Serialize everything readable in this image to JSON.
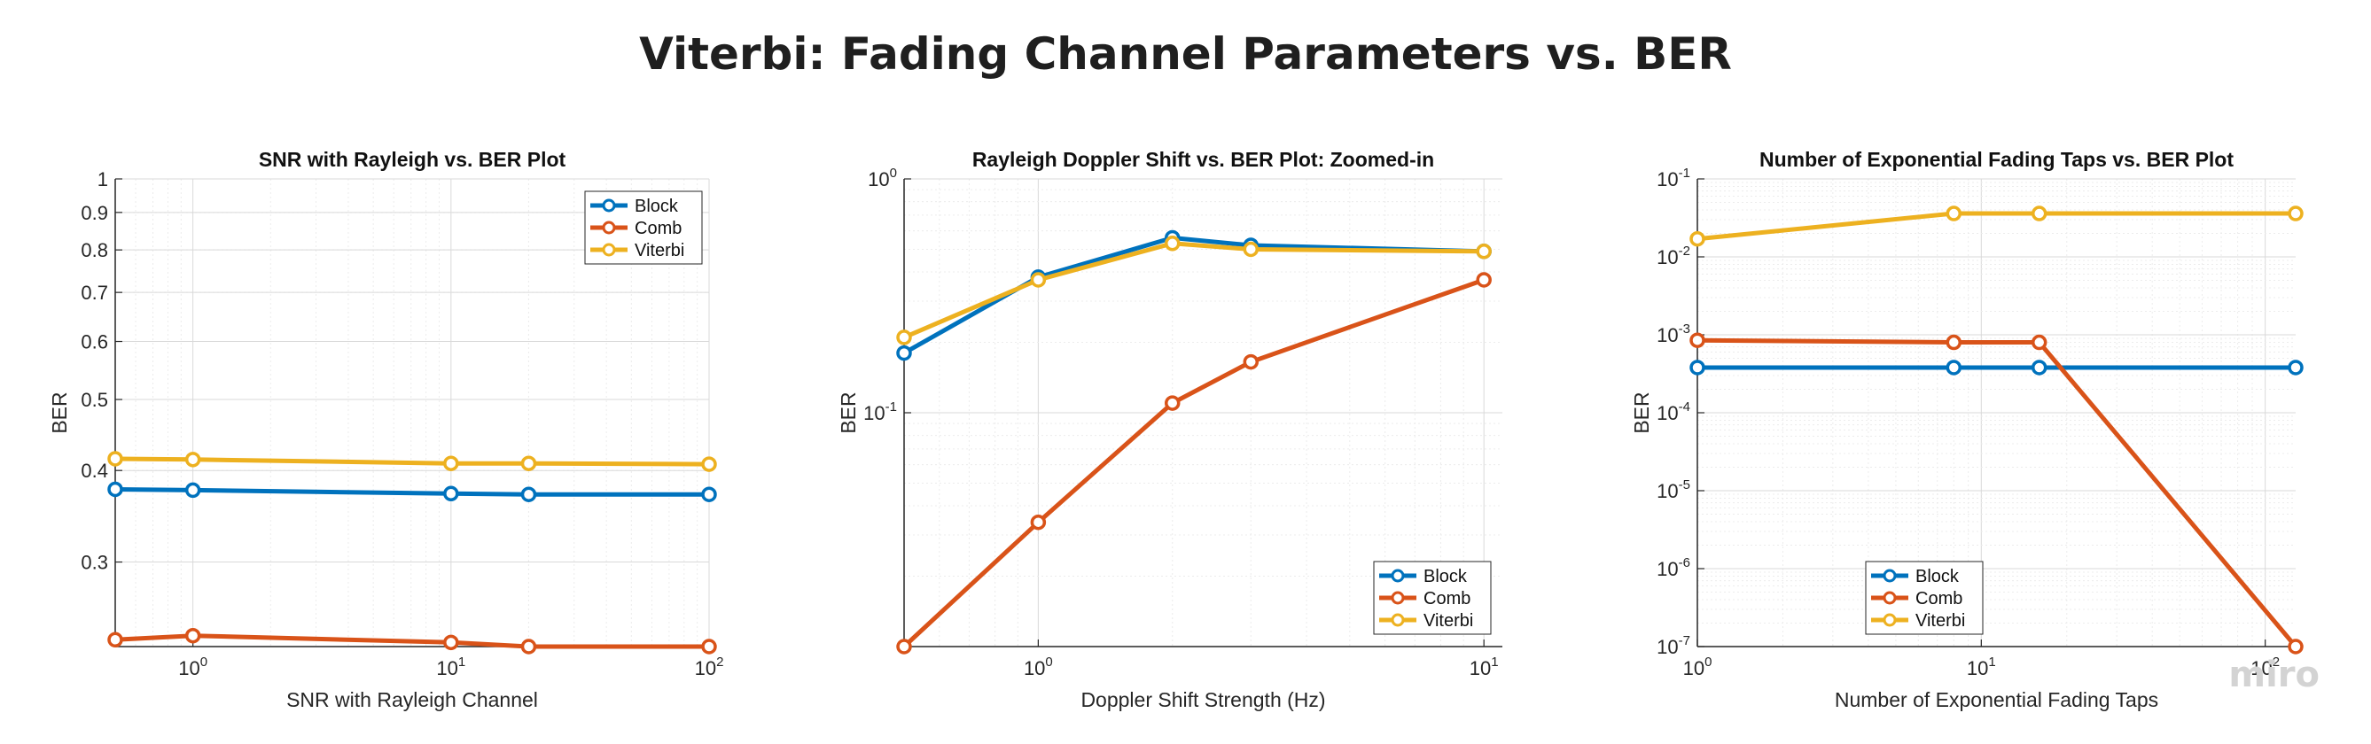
{
  "page": {
    "title": "Viterbi: Fading Channel Parameters vs. BER",
    "watermark": "miro"
  },
  "colors": {
    "Block": "#0072bd",
    "Comb": "#d95319",
    "Viterbi": "#edb120"
  },
  "chart_data": [
    {
      "type": "line",
      "title": "SNR with Rayleigh vs. BER Plot",
      "xlabel": "SNR with Rayleigh Channel",
      "ylabel": "BER",
      "xscale": "log",
      "yscale": "log",
      "xlim": [
        0.5,
        100
      ],
      "ylim": [
        0.23,
        1
      ],
      "xticks": [
        1,
        10,
        100
      ],
      "xtick_labels": [
        "10^0",
        "10^1",
        "10^2"
      ],
      "yticks": [
        0.3,
        0.4,
        0.5,
        0.6,
        0.7,
        0.8,
        0.9,
        1
      ],
      "ytick_labels": [
        "0.3",
        "0.4",
        "0.5",
        "0.6",
        "0.7",
        "0.8",
        "0.9",
        "1"
      ],
      "grid": true,
      "legend": "top-right",
      "x": [
        0.5,
        1,
        10,
        20,
        100
      ],
      "series": [
        {
          "name": "Block",
          "values": [
            0.377,
            0.376,
            0.372,
            0.371,
            0.371
          ]
        },
        {
          "name": "Comb",
          "values": [
            0.235,
            0.238,
            0.233,
            0.23,
            0.23
          ]
        },
        {
          "name": "Viterbi",
          "values": [
            0.415,
            0.414,
            0.409,
            0.409,
            0.408
          ]
        }
      ]
    },
    {
      "type": "line",
      "title": "Rayleigh Doppler Shift vs. BER Plot: Zoomed-in",
      "xlabel": "Doppler Shift Strength (Hz)",
      "ylabel": "BER",
      "xscale": "log",
      "yscale": "log",
      "xlim": [
        0.5,
        11
      ],
      "ylim": [
        0.01,
        1
      ],
      "xticks": [
        1,
        10
      ],
      "xtick_labels": [
        "10^0",
        "10^1"
      ],
      "yticks": [
        0.1,
        1
      ],
      "ytick_labels": [
        "10^-1",
        "10^0"
      ],
      "grid": true,
      "legend": "bottom-right",
      "x": [
        0.5,
        1,
        2,
        3,
        10
      ],
      "series": [
        {
          "name": "Block",
          "values": [
            0.18,
            0.38,
            0.56,
            0.52,
            0.49
          ]
        },
        {
          "name": "Comb",
          "values": [
            0.01,
            0.034,
            0.11,
            0.165,
            0.37
          ]
        },
        {
          "name": "Viterbi",
          "values": [
            0.21,
            0.37,
            0.53,
            0.5,
            0.49
          ]
        }
      ]
    },
    {
      "type": "line",
      "title": "Number of Exponential Fading Taps vs. BER Plot",
      "xlabel": "Number of Exponential Fading Taps",
      "ylabel": "BER",
      "xscale": "log",
      "yscale": "log",
      "xlim": [
        1,
        128
      ],
      "ylim": [
        1e-07,
        0.1
      ],
      "xticks": [
        1,
        10,
        100
      ],
      "xtick_labels": [
        "10^0",
        "10^1",
        "10^2"
      ],
      "yticks": [
        1e-07,
        1e-06,
        1e-05,
        0.0001,
        0.001,
        0.01,
        0.1
      ],
      "ytick_labels": [
        "10^-7",
        "10^-6",
        "10^-5",
        "10^-4",
        "10^-3",
        "10^-2",
        "10^-1"
      ],
      "grid": true,
      "legend": "bottom-left",
      "x": [
        1,
        8,
        16,
        128
      ],
      "series": [
        {
          "name": "Block",
          "values": [
            0.00038,
            0.00038,
            0.00038,
            0.00038
          ]
        },
        {
          "name": "Comb",
          "values": [
            0.00085,
            0.0008,
            0.0008,
            1e-07
          ]
        },
        {
          "name": "Viterbi",
          "values": [
            0.017,
            0.036,
            0.036,
            0.036
          ]
        }
      ]
    }
  ]
}
